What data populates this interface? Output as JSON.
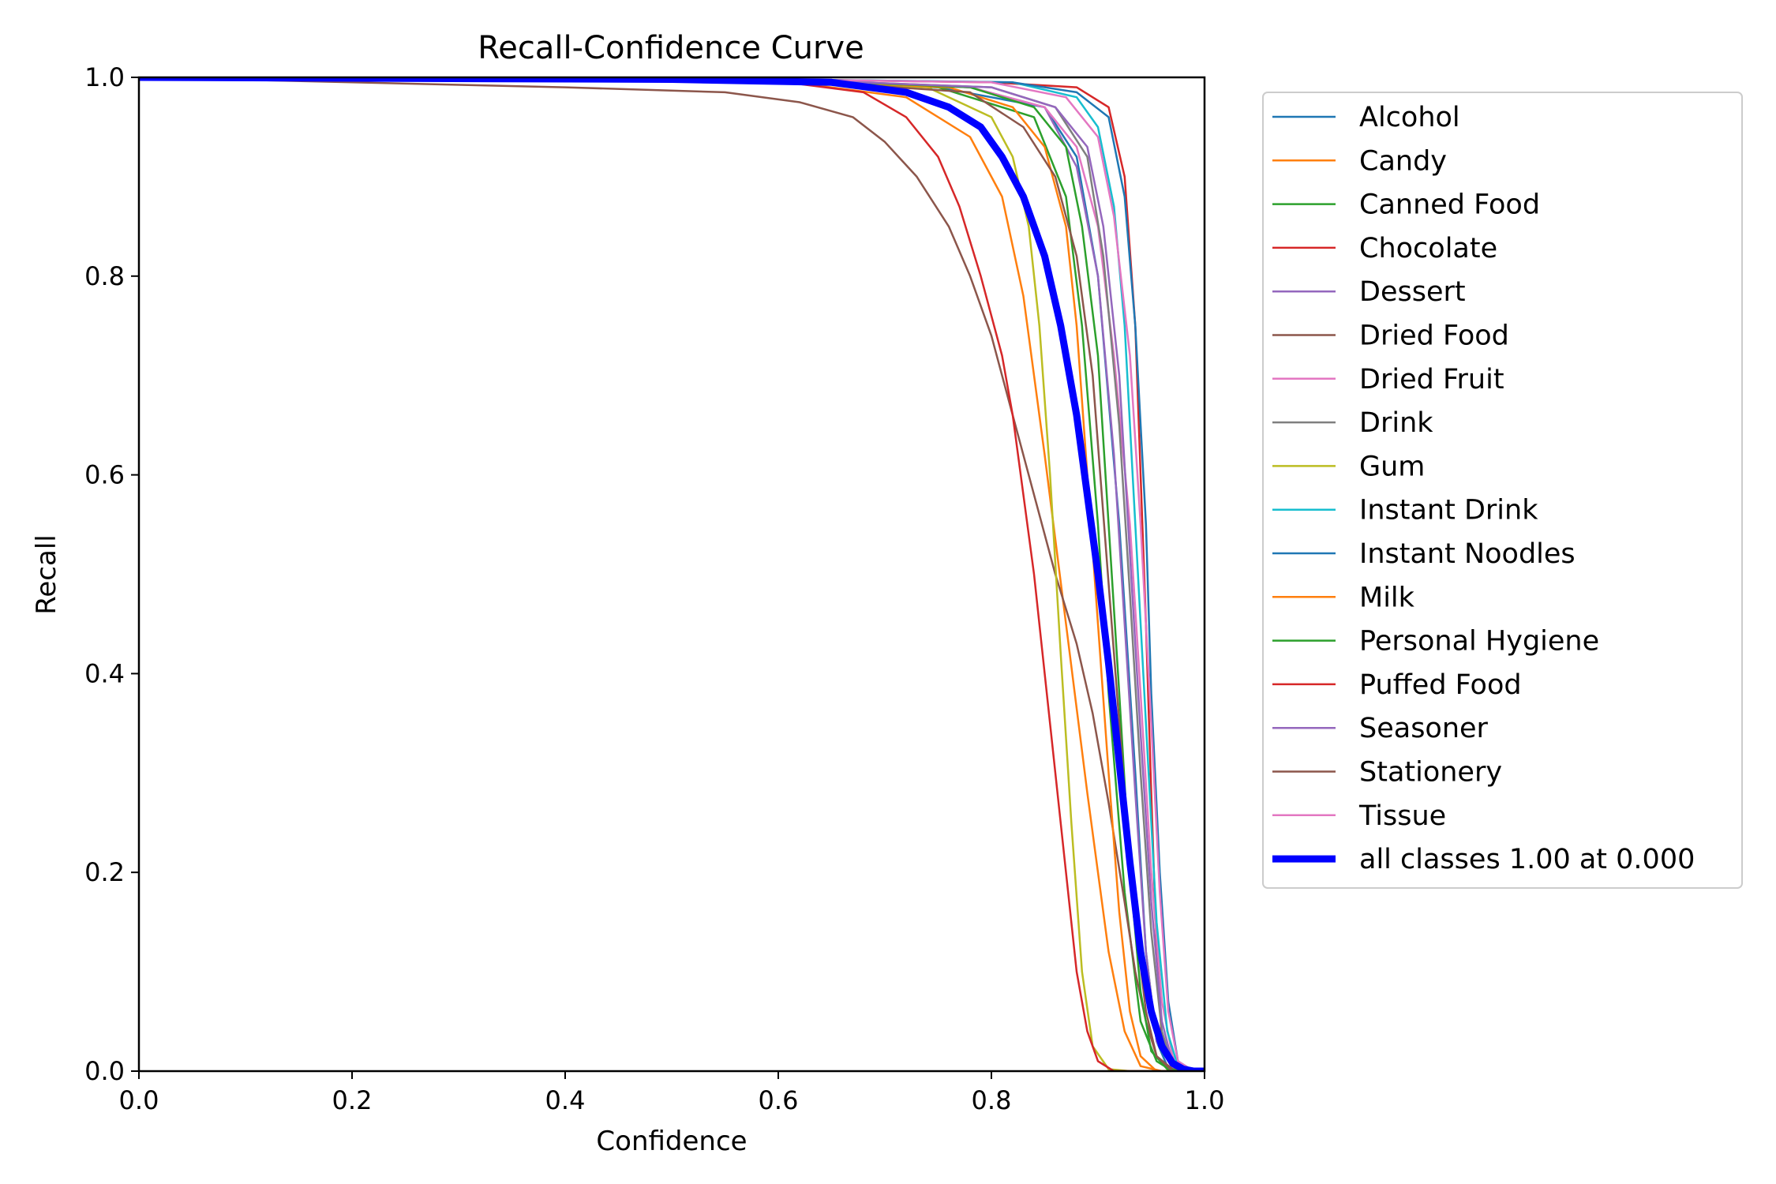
{
  "chart_data": {
    "type": "line",
    "title": "Recall-Confidence Curve",
    "xlabel": "Confidence",
    "ylabel": "Recall",
    "xlim": [
      0.0,
      1.0
    ],
    "ylim": [
      0.0,
      1.0
    ],
    "xticks": [
      "0.0",
      "0.2",
      "0.4",
      "0.6",
      "0.8",
      "1.0"
    ],
    "yticks": [
      "0.0",
      "0.2",
      "0.4",
      "0.6",
      "0.8",
      "1.0"
    ],
    "grid": false,
    "legend_position": "outside-right",
    "series": [
      {
        "name": "Alcohol",
        "color": "#1f77b4",
        "points": [
          [
            0,
            1
          ],
          [
            0.6,
            0.998
          ],
          [
            0.75,
            0.99
          ],
          [
            0.85,
            0.97
          ],
          [
            0.88,
            0.92
          ],
          [
            0.9,
            0.8
          ],
          [
            0.92,
            0.55
          ],
          [
            0.935,
            0.3
          ],
          [
            0.945,
            0.12
          ],
          [
            0.955,
            0.03
          ],
          [
            0.965,
            0.005
          ],
          [
            0.98,
            0
          ],
          [
            1,
            0
          ]
        ]
      },
      {
        "name": "Candy",
        "color": "#ff7f0e",
        "points": [
          [
            0,
            1
          ],
          [
            0.6,
            0.997
          ],
          [
            0.72,
            0.98
          ],
          [
            0.78,
            0.94
          ],
          [
            0.81,
            0.88
          ],
          [
            0.83,
            0.78
          ],
          [
            0.85,
            0.62
          ],
          [
            0.87,
            0.45
          ],
          [
            0.89,
            0.28
          ],
          [
            0.91,
            0.12
          ],
          [
            0.925,
            0.04
          ],
          [
            0.94,
            0.005
          ],
          [
            0.96,
            0
          ],
          [
            1,
            0
          ]
        ]
      },
      {
        "name": "Canned Food",
        "color": "#2ca02c",
        "points": [
          [
            0,
            1
          ],
          [
            0.6,
            0.998
          ],
          [
            0.75,
            0.99
          ],
          [
            0.84,
            0.96
          ],
          [
            0.87,
            0.88
          ],
          [
            0.885,
            0.75
          ],
          [
            0.9,
            0.55
          ],
          [
            0.91,
            0.38
          ],
          [
            0.925,
            0.18
          ],
          [
            0.94,
            0.05
          ],
          [
            0.955,
            0.01
          ],
          [
            0.97,
            0
          ],
          [
            1,
            0
          ]
        ]
      },
      {
        "name": "Chocolate",
        "color": "#d62728",
        "points": [
          [
            0,
            1
          ],
          [
            0.6,
            0.998
          ],
          [
            0.8,
            0.995
          ],
          [
            0.88,
            0.99
          ],
          [
            0.91,
            0.97
          ],
          [
            0.925,
            0.9
          ],
          [
            0.935,
            0.75
          ],
          [
            0.94,
            0.6
          ],
          [
            0.945,
            0.45
          ],
          [
            0.95,
            0.28
          ],
          [
            0.955,
            0.12
          ],
          [
            0.96,
            0.03
          ],
          [
            0.97,
            0.005
          ],
          [
            0.98,
            0
          ],
          [
            1,
            0
          ]
        ]
      },
      {
        "name": "Dessert",
        "color": "#9467bd",
        "points": [
          [
            0,
            1
          ],
          [
            0.6,
            0.998
          ],
          [
            0.78,
            0.99
          ],
          [
            0.85,
            0.97
          ],
          [
            0.88,
            0.91
          ],
          [
            0.9,
            0.8
          ],
          [
            0.915,
            0.62
          ],
          [
            0.925,
            0.45
          ],
          [
            0.935,
            0.28
          ],
          [
            0.945,
            0.12
          ],
          [
            0.955,
            0.03
          ],
          [
            0.97,
            0.003
          ],
          [
            0.985,
            0
          ],
          [
            1,
            0
          ]
        ]
      },
      {
        "name": "Dried Food",
        "color": "#8c564b",
        "points": [
          [
            0,
            1
          ],
          [
            0.2,
            0.995
          ],
          [
            0.4,
            0.99
          ],
          [
            0.55,
            0.985
          ],
          [
            0.62,
            0.975
          ],
          [
            0.67,
            0.96
          ],
          [
            0.7,
            0.935
          ],
          [
            0.73,
            0.9
          ],
          [
            0.76,
            0.85
          ],
          [
            0.78,
            0.8
          ],
          [
            0.8,
            0.74
          ],
          [
            0.82,
            0.66
          ],
          [
            0.84,
            0.58
          ],
          [
            0.86,
            0.5
          ],
          [
            0.88,
            0.43
          ],
          [
            0.895,
            0.36
          ],
          [
            0.91,
            0.27
          ],
          [
            0.925,
            0.17
          ],
          [
            0.935,
            0.1
          ],
          [
            0.945,
            0.05
          ],
          [
            0.955,
            0.015
          ],
          [
            0.97,
            0.002
          ],
          [
            0.985,
            0
          ],
          [
            1,
            0
          ]
        ]
      },
      {
        "name": "Dried Fruit",
        "color": "#e377c2",
        "points": [
          [
            0,
            1
          ],
          [
            0.6,
            0.998
          ],
          [
            0.78,
            0.99
          ],
          [
            0.85,
            0.97
          ],
          [
            0.88,
            0.93
          ],
          [
            0.9,
            0.85
          ],
          [
            0.915,
            0.72
          ],
          [
            0.93,
            0.55
          ],
          [
            0.94,
            0.38
          ],
          [
            0.95,
            0.2
          ],
          [
            0.96,
            0.07
          ],
          [
            0.97,
            0.015
          ],
          [
            0.985,
            0
          ],
          [
            1,
            0
          ]
        ]
      },
      {
        "name": "Drink",
        "color": "#7f7f7f",
        "points": [
          [
            0,
            1
          ],
          [
            0.6,
            0.998
          ],
          [
            0.8,
            0.99
          ],
          [
            0.86,
            0.97
          ],
          [
            0.89,
            0.92
          ],
          [
            0.905,
            0.82
          ],
          [
            0.92,
            0.65
          ],
          [
            0.93,
            0.48
          ],
          [
            0.94,
            0.3
          ],
          [
            0.95,
            0.14
          ],
          [
            0.96,
            0.04
          ],
          [
            0.97,
            0.005
          ],
          [
            0.985,
            0
          ],
          [
            1,
            0
          ]
        ]
      },
      {
        "name": "Gum",
        "color": "#bcbd22",
        "points": [
          [
            0,
            1
          ],
          [
            0.6,
            0.997
          ],
          [
            0.74,
            0.99
          ],
          [
            0.8,
            0.96
          ],
          [
            0.82,
            0.92
          ],
          [
            0.835,
            0.85
          ],
          [
            0.845,
            0.75
          ],
          [
            0.855,
            0.6
          ],
          [
            0.865,
            0.42
          ],
          [
            0.875,
            0.25
          ],
          [
            0.885,
            0.1
          ],
          [
            0.895,
            0.025
          ],
          [
            0.91,
            0.002
          ],
          [
            0.93,
            0
          ],
          [
            1,
            0
          ]
        ]
      },
      {
        "name": "Instant Drink",
        "color": "#17becf",
        "points": [
          [
            0,
            1
          ],
          [
            0.6,
            0.998
          ],
          [
            0.82,
            0.995
          ],
          [
            0.88,
            0.98
          ],
          [
            0.9,
            0.95
          ],
          [
            0.915,
            0.87
          ],
          [
            0.925,
            0.75
          ],
          [
            0.935,
            0.55
          ],
          [
            0.945,
            0.35
          ],
          [
            0.955,
            0.15
          ],
          [
            0.965,
            0.04
          ],
          [
            0.975,
            0.005
          ],
          [
            0.99,
            0
          ],
          [
            1,
            0
          ]
        ]
      },
      {
        "name": "Instant Noodles",
        "color": "#1f77b4",
        "points": [
          [
            0,
            1
          ],
          [
            0.6,
            0.998
          ],
          [
            0.82,
            0.995
          ],
          [
            0.88,
            0.985
          ],
          [
            0.91,
            0.96
          ],
          [
            0.925,
            0.88
          ],
          [
            0.935,
            0.75
          ],
          [
            0.945,
            0.55
          ],
          [
            0.95,
            0.38
          ],
          [
            0.958,
            0.2
          ],
          [
            0.966,
            0.07
          ],
          [
            0.975,
            0.01
          ],
          [
            0.99,
            0
          ],
          [
            1,
            0
          ]
        ]
      },
      {
        "name": "Milk",
        "color": "#ff7f0e",
        "points": [
          [
            0,
            1
          ],
          [
            0.6,
            0.998
          ],
          [
            0.76,
            0.99
          ],
          [
            0.82,
            0.97
          ],
          [
            0.85,
            0.93
          ],
          [
            0.87,
            0.85
          ],
          [
            0.88,
            0.75
          ],
          [
            0.89,
            0.6
          ],
          [
            0.9,
            0.45
          ],
          [
            0.91,
            0.3
          ],
          [
            0.92,
            0.16
          ],
          [
            0.93,
            0.06
          ],
          [
            0.94,
            0.015
          ],
          [
            0.955,
            0
          ],
          [
            1,
            0
          ]
        ]
      },
      {
        "name": "Personal Hygiene",
        "color": "#2ca02c",
        "points": [
          [
            0,
            1
          ],
          [
            0.6,
            0.998
          ],
          [
            0.78,
            0.99
          ],
          [
            0.84,
            0.97
          ],
          [
            0.87,
            0.93
          ],
          [
            0.885,
            0.85
          ],
          [
            0.9,
            0.72
          ],
          [
            0.91,
            0.55
          ],
          [
            0.92,
            0.38
          ],
          [
            0.93,
            0.2
          ],
          [
            0.94,
            0.08
          ],
          [
            0.95,
            0.02
          ],
          [
            0.965,
            0.002
          ],
          [
            0.98,
            0
          ],
          [
            1,
            0
          ]
        ]
      },
      {
        "name": "Puffed Food",
        "color": "#d62728",
        "points": [
          [
            0,
            1
          ],
          [
            0.6,
            0.996
          ],
          [
            0.68,
            0.985
          ],
          [
            0.72,
            0.96
          ],
          [
            0.75,
            0.92
          ],
          [
            0.77,
            0.87
          ],
          [
            0.79,
            0.8
          ],
          [
            0.81,
            0.72
          ],
          [
            0.82,
            0.66
          ],
          [
            0.83,
            0.58
          ],
          [
            0.84,
            0.5
          ],
          [
            0.85,
            0.4
          ],
          [
            0.86,
            0.3
          ],
          [
            0.87,
            0.2
          ],
          [
            0.88,
            0.1
          ],
          [
            0.89,
            0.04
          ],
          [
            0.9,
            0.01
          ],
          [
            0.915,
            0
          ],
          [
            1,
            0
          ]
        ]
      },
      {
        "name": "Seasoner",
        "color": "#9467bd",
        "points": [
          [
            0,
            1
          ],
          [
            0.6,
            0.998
          ],
          [
            0.8,
            0.99
          ],
          [
            0.86,
            0.97
          ],
          [
            0.89,
            0.93
          ],
          [
            0.905,
            0.85
          ],
          [
            0.92,
            0.7
          ],
          [
            0.93,
            0.52
          ],
          [
            0.94,
            0.34
          ],
          [
            0.95,
            0.17
          ],
          [
            0.96,
            0.05
          ],
          [
            0.97,
            0.008
          ],
          [
            0.985,
            0
          ],
          [
            1,
            0
          ]
        ]
      },
      {
        "name": "Stationery",
        "color": "#8c564b",
        "points": [
          [
            0,
            1
          ],
          [
            0.6,
            0.998
          ],
          [
            0.78,
            0.985
          ],
          [
            0.83,
            0.95
          ],
          [
            0.86,
            0.9
          ],
          [
            0.88,
            0.82
          ],
          [
            0.895,
            0.7
          ],
          [
            0.905,
            0.56
          ],
          [
            0.915,
            0.42
          ],
          [
            0.925,
            0.28
          ],
          [
            0.935,
            0.15
          ],
          [
            0.945,
            0.06
          ],
          [
            0.955,
            0.015
          ],
          [
            0.97,
            0
          ],
          [
            1,
            0
          ]
        ]
      },
      {
        "name": "Tissue",
        "color": "#e377c2",
        "points": [
          [
            0,
            1
          ],
          [
            0.6,
            0.998
          ],
          [
            0.8,
            0.995
          ],
          [
            0.87,
            0.98
          ],
          [
            0.9,
            0.94
          ],
          [
            0.915,
            0.86
          ],
          [
            0.93,
            0.72
          ],
          [
            0.94,
            0.55
          ],
          [
            0.95,
            0.35
          ],
          [
            0.958,
            0.18
          ],
          [
            0.966,
            0.06
          ],
          [
            0.975,
            0.01
          ],
          [
            0.99,
            0
          ],
          [
            1,
            0
          ]
        ]
      },
      {
        "name": "all classes 1.00 at 0.000",
        "color": "#0000ff",
        "bold": true,
        "points": [
          [
            0,
            1
          ],
          [
            0.5,
            0.998
          ],
          [
            0.65,
            0.995
          ],
          [
            0.72,
            0.985
          ],
          [
            0.76,
            0.97
          ],
          [
            0.79,
            0.95
          ],
          [
            0.81,
            0.92
          ],
          [
            0.83,
            0.88
          ],
          [
            0.85,
            0.82
          ],
          [
            0.865,
            0.75
          ],
          [
            0.88,
            0.66
          ],
          [
            0.89,
            0.58
          ],
          [
            0.9,
            0.5
          ],
          [
            0.91,
            0.41
          ],
          [
            0.92,
            0.31
          ],
          [
            0.93,
            0.21
          ],
          [
            0.94,
            0.12
          ],
          [
            0.95,
            0.06
          ],
          [
            0.96,
            0.025
          ],
          [
            0.97,
            0.008
          ],
          [
            0.98,
            0.002
          ],
          [
            0.99,
            0
          ],
          [
            1,
            0
          ]
        ]
      }
    ]
  }
}
